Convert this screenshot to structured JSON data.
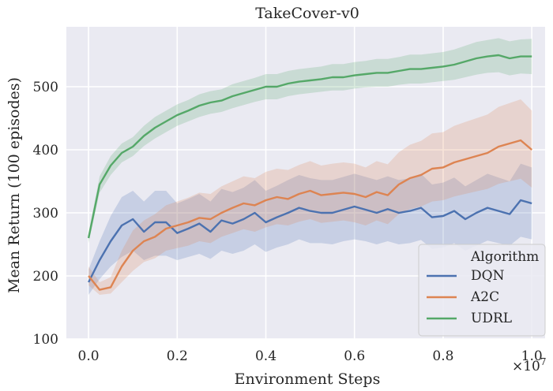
{
  "chart_data": {
    "type": "line",
    "title": "TakeCover-v0",
    "xlabel": "Environment Steps",
    "ylabel": "Mean Return (100 episodes)",
    "x_multiplier_label": "×10^7",
    "xlim": [
      -0.05,
      1.03
    ],
    "ylim": [
      100,
      595
    ],
    "xticks": [
      "0.0",
      "0.2",
      "0.4",
      "0.6",
      "0.8",
      "1.0"
    ],
    "yticks": [
      "100",
      "200",
      "300",
      "400",
      "500"
    ],
    "xtick_values": [
      0.0,
      0.2,
      0.4,
      0.6,
      0.8,
      1.0
    ],
    "ytick_values": [
      100,
      200,
      300,
      400,
      500
    ],
    "grid": true,
    "legend": {
      "title": "Algorithm",
      "placement": "bottom-right"
    },
    "x": [
      0.0,
      0.025,
      0.05,
      0.075,
      0.1,
      0.125,
      0.15,
      0.175,
      0.2,
      0.225,
      0.25,
      0.275,
      0.3,
      0.325,
      0.35,
      0.375,
      0.4,
      0.425,
      0.45,
      0.475,
      0.5,
      0.525,
      0.55,
      0.575,
      0.6,
      0.625,
      0.65,
      0.675,
      0.7,
      0.725,
      0.75,
      0.775,
      0.8,
      0.825,
      0.85,
      0.875,
      0.9,
      0.925,
      0.95,
      0.975,
      1.0
    ],
    "series": [
      {
        "name": "DQN",
        "color": "#4c72b0",
        "values": [
          190,
          225,
          255,
          280,
          290,
          270,
          285,
          285,
          268,
          275,
          283,
          270,
          288,
          283,
          290,
          300,
          285,
          293,
          300,
          308,
          303,
          300,
          300,
          305,
          310,
          305,
          300,
          306,
          300,
          303,
          308,
          293,
          295,
          303,
          290,
          300,
          308,
          303,
          298,
          320,
          315
        ],
        "lower": [
          170,
          195,
          215,
          230,
          240,
          225,
          232,
          232,
          225,
          230,
          235,
          227,
          240,
          235,
          240,
          250,
          238,
          245,
          250,
          258,
          252,
          252,
          250,
          255,
          258,
          255,
          250,
          255,
          250,
          252,
          257,
          243,
          245,
          252,
          240,
          248,
          256,
          252,
          248,
          262,
          258
        ],
        "upper": [
          210,
          255,
          295,
          325,
          335,
          318,
          335,
          335,
          315,
          322,
          330,
          318,
          338,
          333,
          340,
          352,
          335,
          343,
          352,
          360,
          355,
          352,
          352,
          357,
          362,
          357,
          352,
          358,
          352,
          355,
          362,
          345,
          348,
          356,
          342,
          352,
          362,
          356,
          350,
          378,
          372
        ]
      },
      {
        "name": "A2C",
        "color": "#dd8452",
        "values": [
          200,
          178,
          182,
          215,
          240,
          255,
          262,
          275,
          280,
          285,
          292,
          290,
          300,
          308,
          315,
          312,
          320,
          325,
          322,
          330,
          335,
          328,
          330,
          332,
          330,
          325,
          333,
          328,
          345,
          355,
          360,
          370,
          372,
          380,
          385,
          390,
          395,
          405,
          410,
          415,
          400
        ],
        "lower": [
          185,
          170,
          172,
          190,
          208,
          222,
          228,
          240,
          244,
          248,
          255,
          252,
          262,
          268,
          274,
          270,
          277,
          282,
          280,
          286,
          290,
          284,
          286,
          288,
          285,
          280,
          288,
          282,
          298,
          306,
          310,
          318,
          320,
          326,
          330,
          334,
          338,
          346,
          350,
          354,
          340
        ],
        "upper": [
          215,
          190,
          198,
          240,
          272,
          288,
          298,
          312,
          318,
          324,
          332,
          330,
          342,
          350,
          358,
          355,
          365,
          370,
          368,
          376,
          382,
          375,
          378,
          380,
          378,
          372,
          382,
          377,
          396,
          408,
          414,
          426,
          428,
          438,
          444,
          450,
          456,
          468,
          474,
          480,
          462
        ]
      },
      {
        "name": "UDRL",
        "color": "#55a868",
        "values": [
          260,
          345,
          375,
          395,
          405,
          422,
          435,
          445,
          455,
          462,
          470,
          475,
          478,
          485,
          490,
          495,
          500,
          500,
          505,
          508,
          510,
          512,
          515,
          515,
          518,
          520,
          522,
          522,
          525,
          528,
          528,
          530,
          532,
          535,
          540,
          545,
          548,
          550,
          545,
          548,
          548
        ],
        "lower": [
          252,
          332,
          360,
          380,
          390,
          406,
          418,
          428,
          438,
          445,
          452,
          457,
          460,
          466,
          471,
          476,
          480,
          480,
          485,
          488,
          490,
          492,
          494,
          494,
          497,
          499,
          500,
          500,
          503,
          505,
          505,
          507,
          509,
          511,
          515,
          519,
          522,
          523,
          518,
          521,
          520
        ],
        "upper": [
          268,
          358,
          390,
          410,
          420,
          438,
          452,
          462,
          472,
          479,
          488,
          493,
          496,
          504,
          509,
          514,
          520,
          520,
          525,
          528,
          530,
          532,
          536,
          536,
          539,
          541,
          544,
          544,
          547,
          551,
          551,
          553,
          555,
          559,
          565,
          571,
          574,
          577,
          572,
          575,
          576
        ]
      }
    ]
  }
}
